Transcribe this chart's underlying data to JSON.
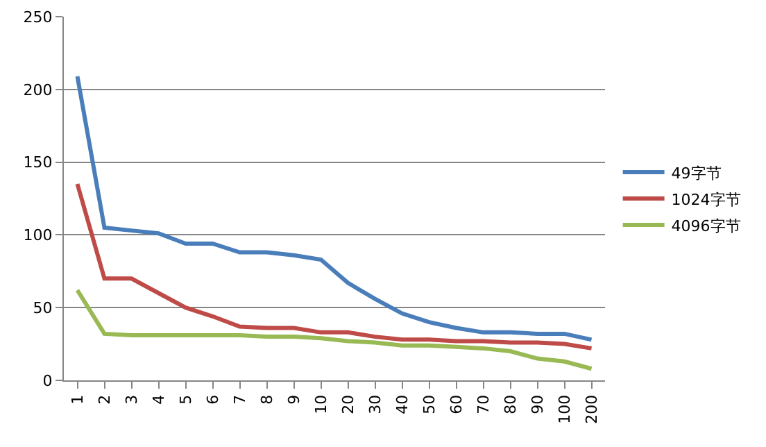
{
  "chart_data": {
    "type": "line",
    "categories": [
      "1",
      "2",
      "3",
      "4",
      "5",
      "6",
      "7",
      "8",
      "9",
      "10",
      "20",
      "30",
      "40",
      "50",
      "60",
      "70",
      "80",
      "90",
      "100",
      "200"
    ],
    "series": [
      {
        "name": "49字节",
        "color": "#4a7ebb",
        "values": [
          209,
          105,
          103,
          101,
          94,
          94,
          88,
          88,
          86,
          83,
          67,
          56,
          46,
          40,
          36,
          33,
          33,
          32,
          32,
          28
        ]
      },
      {
        "name": "1024字节",
        "color": "#be4b48",
        "values": [
          135,
          70,
          70,
          60,
          50,
          44,
          37,
          36,
          36,
          33,
          33,
          30,
          28,
          28,
          27,
          27,
          26,
          26,
          25,
          22
        ]
      },
      {
        "name": "4096字节",
        "color": "#98b954",
        "values": [
          62,
          32,
          31,
          31,
          31,
          31,
          31,
          30,
          30,
          29,
          27,
          26,
          24,
          24,
          23,
          22,
          20,
          15,
          13,
          8
        ]
      }
    ],
    "ylim": [
      0,
      250
    ],
    "yticks": [
      0,
      50,
      100,
      150,
      200,
      250
    ],
    "grid": "y",
    "legend": "right",
    "marker": "none",
    "line_style": "solid"
  }
}
